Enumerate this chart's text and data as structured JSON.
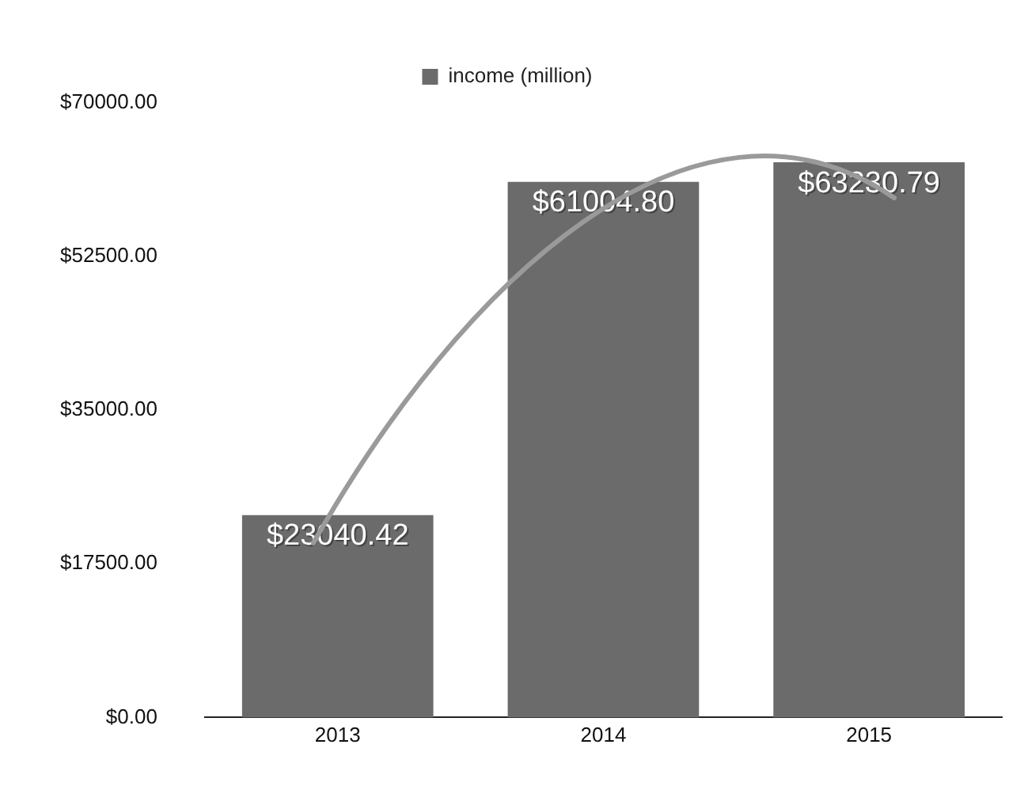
{
  "chart_data": {
    "type": "bar",
    "categories": [
      "2013",
      "2014",
      "2015"
    ],
    "series": [
      {
        "name": "income (million)",
        "color": "#6b6b6b",
        "values": [
          23040.42,
          61004.8,
          63230.79
        ],
        "value_labels": [
          "$23040.42",
          "$61004.80",
          "$63230.79"
        ]
      }
    ],
    "ylim": [
      0,
      70000
    ],
    "yticks": [
      {
        "value": 0,
        "label": "$0.00"
      },
      {
        "value": 17500,
        "label": "$17500.00"
      },
      {
        "value": 35000,
        "label": "$35000.00"
      },
      {
        "value": 52500,
        "label": "$52500.00"
      },
      {
        "value": 70000,
        "label": "$70000.00"
      }
    ],
    "legend": "top",
    "grid": false
  }
}
